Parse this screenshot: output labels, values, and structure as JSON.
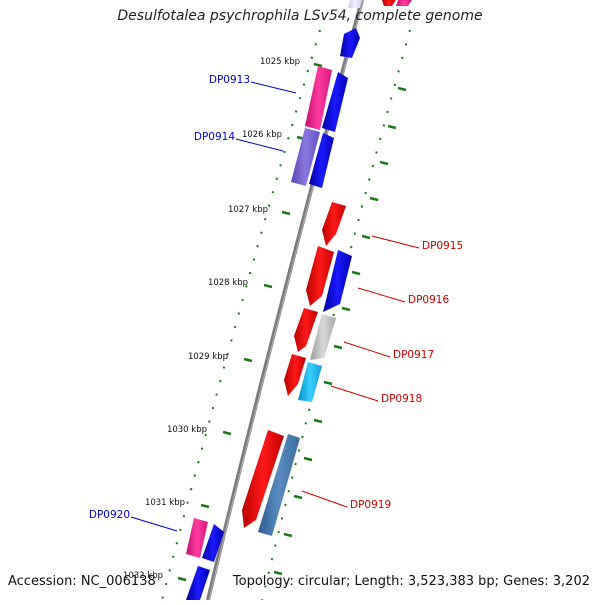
{
  "title": "Desulfotalea psychrophila LSv54, complete genome",
  "footer": {
    "accession": "Accession: NC_006138",
    "topology": "Topology: circular; Length: 3,523,383 bp; Genes: 3,202"
  },
  "colors": {
    "backbone": "#7a7a7a",
    "tick": "#1a7a1a",
    "label_plus": "#0000cc",
    "label_minus": "#cc0000"
  },
  "ticks": [
    {
      "label": "1025 kbp"
    },
    {
      "label": "1026 kbp"
    },
    {
      "label": "1027 kbp"
    },
    {
      "label": "1028 kbp"
    },
    {
      "label": "1029 kbp"
    },
    {
      "label": "1030 kbp"
    },
    {
      "label": "1031 kbp"
    },
    {
      "label": "1032 kbp"
    }
  ],
  "gene_labels": [
    {
      "id": "DP0913",
      "strand": "plus"
    },
    {
      "id": "DP0914",
      "strand": "plus"
    },
    {
      "id": "DP0915",
      "strand": "minus"
    },
    {
      "id": "DP0916",
      "strand": "minus"
    },
    {
      "id": "DP0917",
      "strand": "minus"
    },
    {
      "id": "DP0918",
      "strand": "minus"
    },
    {
      "id": "DP0919",
      "strand": "minus"
    },
    {
      "id": "DP0920",
      "strand": "plus"
    }
  ]
}
